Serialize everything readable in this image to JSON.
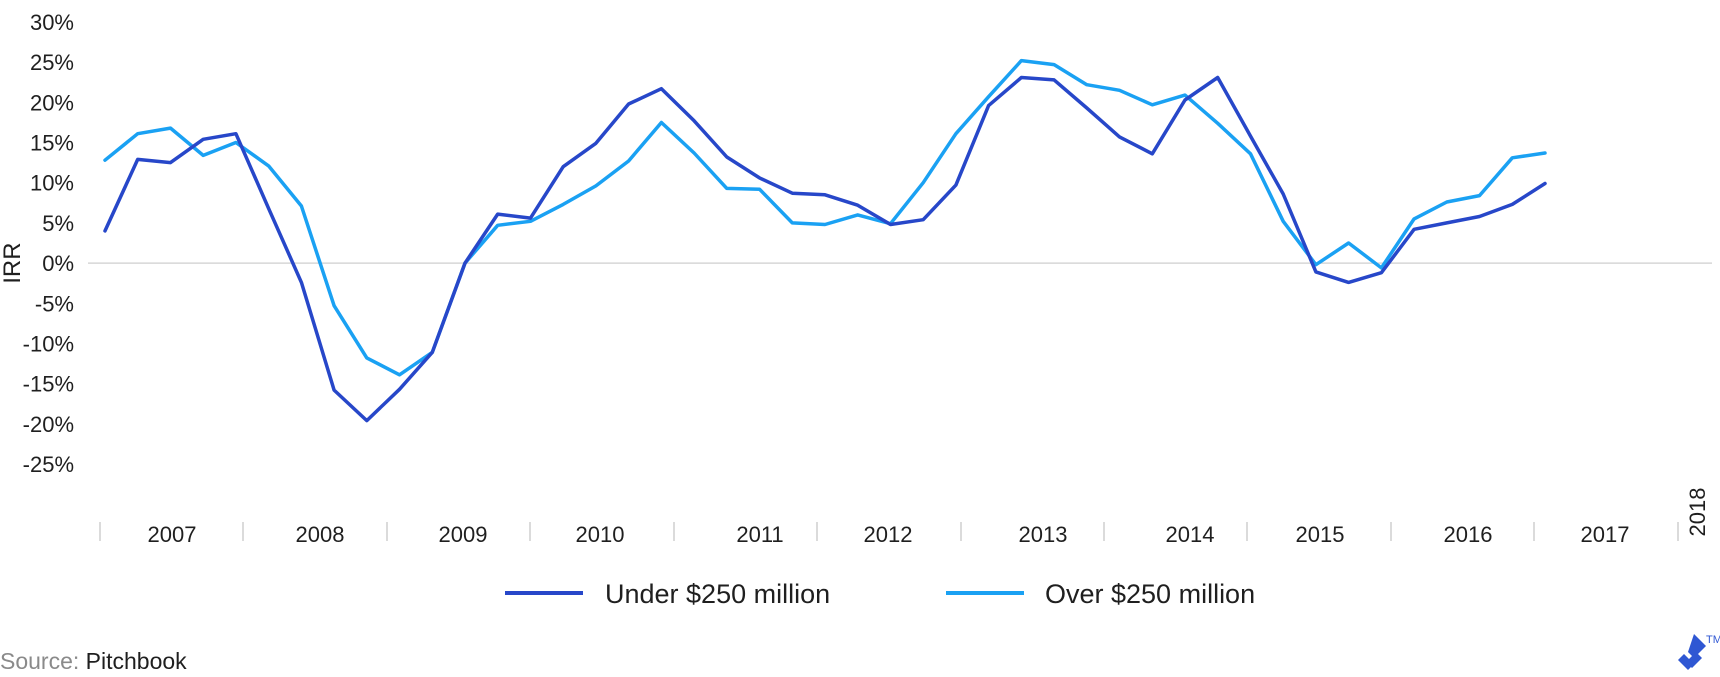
{
  "chart_data": {
    "type": "line",
    "xlabel": "",
    "ylabel": "IRR",
    "ylim": [
      -25,
      30
    ],
    "yticks": [
      "30%",
      "25%",
      "20%",
      "15%",
      "10%",
      "5%",
      "0%",
      "-5%",
      "-10%",
      "-15%",
      "-20%",
      "-25%"
    ],
    "year_labels": [
      "2007",
      "2008",
      "2009",
      "2010",
      "2011",
      "2012",
      "2013",
      "2014",
      "2015",
      "2016",
      "2017",
      "2018"
    ],
    "x": [
      "2007 Q1",
      "2007 Q2",
      "2007 Q3",
      "2007 Q4",
      "2008 Q1",
      "2008 Q2",
      "2008 Q3",
      "2008 Q4",
      "2009 Q1",
      "2009 Q2",
      "2009 Q3",
      "2009 Q4",
      "2010 Q1",
      "2010 Q2",
      "2010 Q3",
      "2010 Q4",
      "2011 Q1",
      "2011 Q2",
      "2011 Q3",
      "2011 Q4",
      "2012 Q1",
      "2012 Q2",
      "2012 Q3",
      "2012 Q4",
      "2013 Q1",
      "2013 Q2",
      "2013 Q3",
      "2013 Q4",
      "2014 Q1",
      "2014 Q2",
      "2014 Q3",
      "2014 Q4",
      "2015 Q1",
      "2015 Q2",
      "2015 Q3",
      "2015 Q4",
      "2016 Q1",
      "2016 Q2",
      "2016 Q3",
      "2016 Q4",
      "2017 Q1",
      "2017 Q2",
      "2017 Q3",
      "2017 Q4",
      "2018 Q1"
    ],
    "zero_line": true,
    "legend": "bottom-center",
    "series": [
      {
        "name": "Under $250 million",
        "color": "#2747c9",
        "values": [
          4.0,
          12.9,
          12.5,
          15.4,
          16.1,
          6.8,
          -2.4,
          -15.8,
          -19.6,
          -15.7,
          -11.1,
          0.0,
          6.1,
          5.6,
          12.0,
          14.9,
          19.8,
          21.7,
          17.7,
          13.2,
          10.6,
          8.7,
          8.5,
          7.2,
          4.8,
          5.4,
          9.7,
          19.6,
          23.1,
          22.8,
          19.3,
          15.7,
          13.6,
          20.3,
          23.1,
          15.8,
          8.6,
          -1.1,
          -2.4,
          -1.2,
          4.2,
          5.0,
          5.8,
          7.3,
          9.9
        ]
      },
      {
        "name": "Over $250 million",
        "color": "#1aa1f3",
        "values": [
          12.8,
          16.1,
          16.8,
          13.4,
          15.0,
          12.1,
          7.1,
          -5.3,
          -11.8,
          -13.9,
          -11.1,
          0.0,
          4.7,
          5.2,
          7.3,
          9.6,
          12.7,
          17.5,
          13.7,
          9.3,
          9.2,
          5.0,
          4.8,
          6.0,
          4.9,
          10.0,
          16.1,
          20.7,
          25.2,
          24.7,
          22.2,
          21.5,
          19.7,
          20.9,
          17.4,
          13.6,
          5.2,
          -0.2,
          2.5,
          -0.6,
          5.5,
          7.6,
          8.4,
          13.1,
          13.7
        ]
      }
    ]
  },
  "source_label": "Source:",
  "source_value": "Pitchbook",
  "colors": {
    "zero_line": "#d6d6d6",
    "separator": "#cfcfcf",
    "logo": "#2f57d3"
  }
}
